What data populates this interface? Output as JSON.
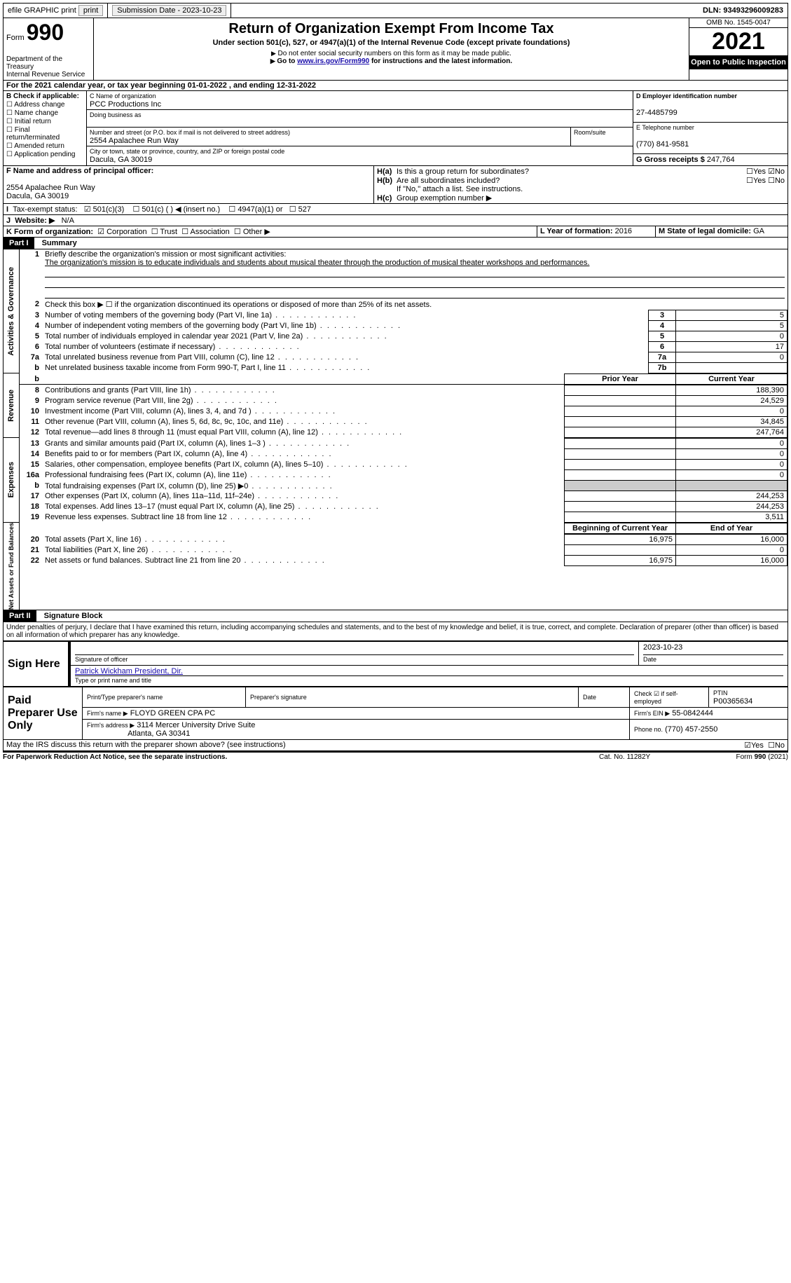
{
  "topbar": {
    "efile": "efile GRAPHIC print",
    "submission": "Submission Date - 2023-10-23",
    "dln": "DLN: 93493296009283"
  },
  "header": {
    "form_word": "Form",
    "form_num": "990",
    "dept": "Department of the Treasury",
    "irs": "Internal Revenue Service",
    "title": "Return of Organization Exempt From Income Tax",
    "subtitle": "Under section 501(c), 527, or 4947(a)(1) of the Internal Revenue Code (except private foundations)",
    "note1": "Do not enter social security numbers on this form as it may be made public.",
    "note2_pre": "Go to ",
    "note2_link": "www.irs.gov/Form990",
    "note2_post": " for instructions and the latest information.",
    "omb": "OMB No. 1545-0047",
    "year": "2021",
    "inspect": "Open to Public Inspection"
  },
  "sectionA": {
    "line": "For the 2021 calendar year, or tax year beginning 01-01-2022   , and ending 12-31-2022"
  },
  "sectionB": {
    "label": "B Check if applicable:",
    "items": [
      "Address change",
      "Name change",
      "Initial return",
      "Final return/terminated",
      "Amended return",
      "Application pending"
    ]
  },
  "sectionC": {
    "label": "C Name of organization",
    "org": "PCC Productions Inc",
    "dba_label": "Doing business as",
    "addr_label": "Number and street (or P.O. box if mail is not delivered to street address)",
    "room_label": "Room/suite",
    "addr": "2554 Apalachee Run Way",
    "city_label": "City or town, state or province, country, and ZIP or foreign postal code",
    "city": "Dacula, GA  30019"
  },
  "sectionD": {
    "label": "D Employer identification number",
    "val": "27-4485799"
  },
  "sectionE": {
    "label": "E Telephone number",
    "val": "(770) 841-9581"
  },
  "sectionG": {
    "label": "G Gross receipts $",
    "val": "247,764"
  },
  "sectionF": {
    "label": "F Name and address of principal officer:",
    "addr1": "2554 Apalachee Run Way",
    "addr2": "Dacula, GA  30019"
  },
  "sectionH": {
    "ha": "Is this a group return for subordinates?",
    "hb": "Are all subordinates included?",
    "hb_note": "If \"No,\" attach a list. See instructions.",
    "hc": "Group exemption number ▶",
    "yes": "Yes",
    "no": "No"
  },
  "sectionI": {
    "label": "Tax-exempt status:",
    "opts": [
      "501(c)(3)",
      "501(c) (  ) ◀ (insert no.)",
      "4947(a)(1) or",
      "527"
    ]
  },
  "sectionJ": {
    "label": "Website: ▶",
    "val": "N/A"
  },
  "sectionK": {
    "label": "K Form of organization:",
    "opts": [
      "Corporation",
      "Trust",
      "Association",
      "Other ▶"
    ]
  },
  "sectionL": {
    "label": "L Year of formation:",
    "val": "2016"
  },
  "sectionM": {
    "label": "M State of legal domicile:",
    "val": "GA"
  },
  "part1": {
    "header": "Part I",
    "title": "Summary",
    "q1": "Briefly describe the organization's mission or most significant activities:",
    "mission": "The organization's mission is to educate individuals and students about musical theater through the production of musical theater workshops and performances.",
    "q2": "Check this box ▶ ☐ if the organization discontinued its operations or disposed of more than 25% of its net assets.",
    "rows_gov": [
      {
        "n": "3",
        "t": "Number of voting members of the governing body (Part VI, line 1a)",
        "box": "3",
        "v": "5"
      },
      {
        "n": "4",
        "t": "Number of independent voting members of the governing body (Part VI, line 1b)",
        "box": "4",
        "v": "5"
      },
      {
        "n": "5",
        "t": "Total number of individuals employed in calendar year 2021 (Part V, line 2a)",
        "box": "5",
        "v": "0"
      },
      {
        "n": "6",
        "t": "Total number of volunteers (estimate if necessary)",
        "box": "6",
        "v": "17"
      },
      {
        "n": "7a",
        "t": "Total unrelated business revenue from Part VIII, column (C), line 12",
        "box": "7a",
        "v": "0"
      },
      {
        "n": "b",
        "t": "Net unrelated business taxable income from Form 990-T, Part I, line 11",
        "box": "7b",
        "v": ""
      }
    ],
    "col_prior": "Prior Year",
    "col_current": "Current Year",
    "rows_rev": [
      {
        "n": "8",
        "t": "Contributions and grants (Part VIII, line 1h)",
        "p": "",
        "c": "188,390"
      },
      {
        "n": "9",
        "t": "Program service revenue (Part VIII, line 2g)",
        "p": "",
        "c": "24,529"
      },
      {
        "n": "10",
        "t": "Investment income (Part VIII, column (A), lines 3, 4, and 7d )",
        "p": "",
        "c": "0"
      },
      {
        "n": "11",
        "t": "Other revenue (Part VIII, column (A), lines 5, 6d, 8c, 9c, 10c, and 11e)",
        "p": "",
        "c": "34,845"
      },
      {
        "n": "12",
        "t": "Total revenue—add lines 8 through 11 (must equal Part VIII, column (A), line 12)",
        "p": "",
        "c": "247,764"
      }
    ],
    "rows_exp": [
      {
        "n": "13",
        "t": "Grants and similar amounts paid (Part IX, column (A), lines 1–3 )",
        "p": "",
        "c": "0"
      },
      {
        "n": "14",
        "t": "Benefits paid to or for members (Part IX, column (A), line 4)",
        "p": "",
        "c": "0"
      },
      {
        "n": "15",
        "t": "Salaries, other compensation, employee benefits (Part IX, column (A), lines 5–10)",
        "p": "",
        "c": "0"
      },
      {
        "n": "16a",
        "t": "Professional fundraising fees (Part IX, column (A), line 11e)",
        "p": "",
        "c": "0"
      },
      {
        "n": "b",
        "t": "Total fundraising expenses (Part IX, column (D), line 25) ▶0",
        "p": "grey",
        "c": "grey"
      },
      {
        "n": "17",
        "t": "Other expenses (Part IX, column (A), lines 11a–11d, 11f–24e)",
        "p": "",
        "c": "244,253"
      },
      {
        "n": "18",
        "t": "Total expenses. Add lines 13–17 (must equal Part IX, column (A), line 25)",
        "p": "",
        "c": "244,253"
      },
      {
        "n": "19",
        "t": "Revenue less expenses. Subtract line 18 from line 12",
        "p": "",
        "c": "3,511"
      }
    ],
    "col_begin": "Beginning of Current Year",
    "col_end": "End of Year",
    "rows_net": [
      {
        "n": "20",
        "t": "Total assets (Part X, line 16)",
        "p": "16,975",
        "c": "16,000"
      },
      {
        "n": "21",
        "t": "Total liabilities (Part X, line 26)",
        "p": "",
        "c": "0"
      },
      {
        "n": "22",
        "t": "Net assets or fund balances. Subtract line 21 from line 20",
        "p": "16,975",
        "c": "16,000"
      }
    ],
    "side_gov": "Activities & Governance",
    "side_rev": "Revenue",
    "side_exp": "Expenses",
    "side_net": "Net Assets or Fund Balances"
  },
  "part2": {
    "header": "Part II",
    "title": "Signature Block",
    "decl": "Under penalties of perjury, I declare that I have examined this return, including accompanying schedules and statements, and to the best of my knowledge and belief, it is true, correct, and complete. Declaration of preparer (other than officer) is based on all information of which preparer has any knowledge.",
    "sign_here": "Sign Here",
    "sig_officer": "Signature of officer",
    "sig_date": "2023-10-23",
    "date_label": "Date",
    "officer_name": "Patrick Wickham  President, Dir.",
    "type_name": "Type or print name and title",
    "paid": "Paid Preparer Use Only",
    "prep_name_label": "Print/Type preparer's name",
    "prep_sig_label": "Preparer's signature",
    "check_if": "Check ☑ if self-employed",
    "ptin_label": "PTIN",
    "ptin": "P00365634",
    "firm_name_label": "Firm's name   ▶",
    "firm_name": "FLOYD GREEN CPA PC",
    "firm_ein_label": "Firm's EIN ▶",
    "firm_ein": "55-0842444",
    "firm_addr_label": "Firm's address ▶",
    "firm_addr": "3114 Mercer University Drive Suite",
    "firm_addr2": "Atlanta, GA  30341",
    "phone_label": "Phone no.",
    "phone": "(770) 457-2550",
    "discuss": "May the IRS discuss this return with the preparer shown above? (see instructions)"
  },
  "footer": {
    "pra": "For Paperwork Reduction Act Notice, see the separate instructions.",
    "cat": "Cat. No. 11282Y",
    "form": "Form 990 (2021)"
  }
}
